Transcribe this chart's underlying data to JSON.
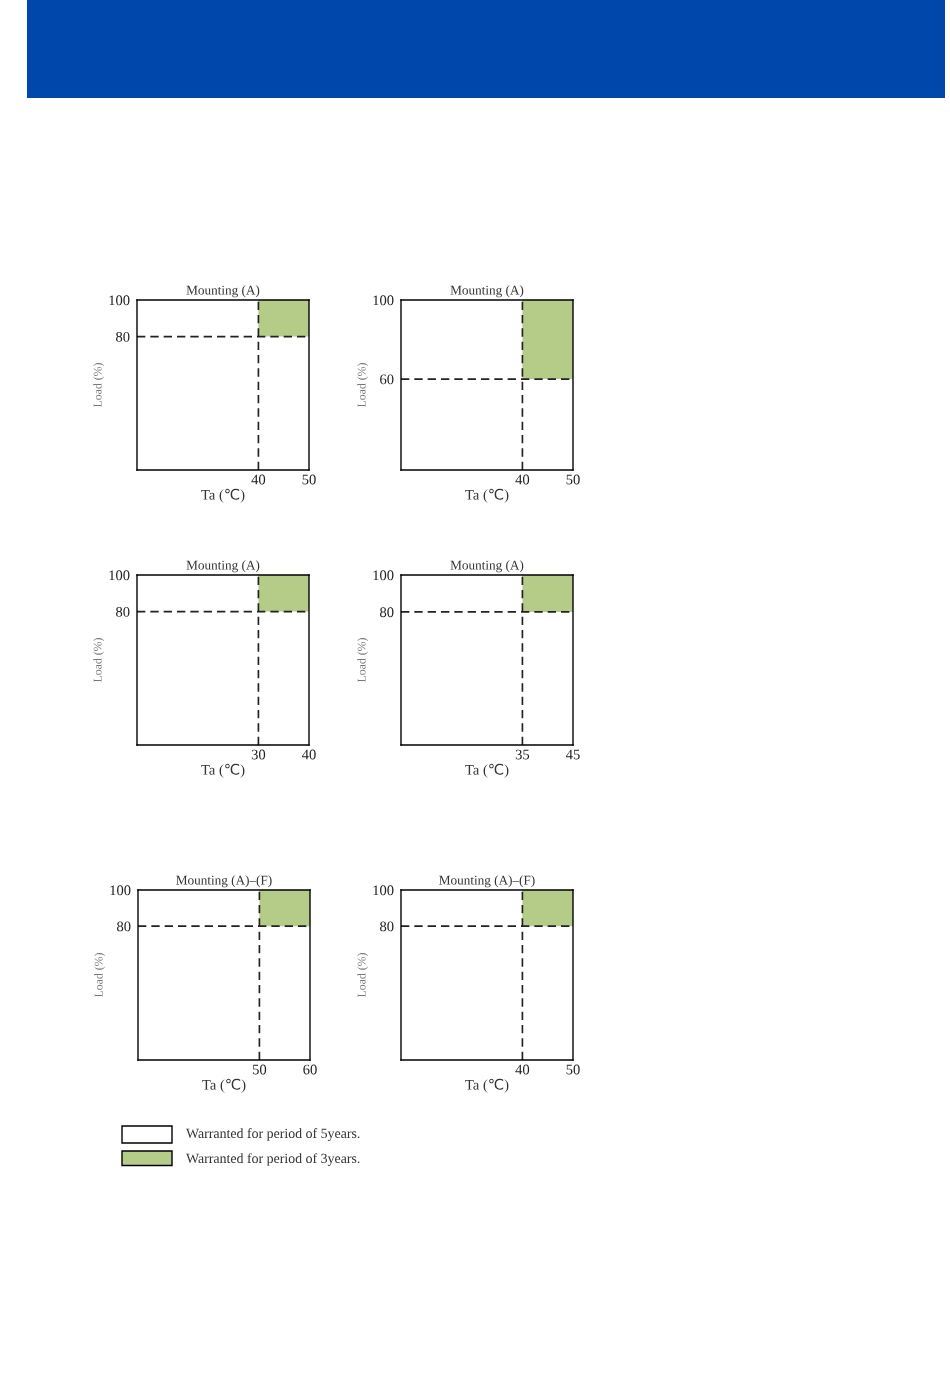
{
  "chart_data": [
    {
      "type": "line",
      "title": "Mounting (A)",
      "xlabel": "Ta (℃)",
      "ylabel": "Load (%)",
      "xlim": [
        16,
        50
      ],
      "xticks": [
        40,
        50
      ],
      "ylim": [
        7,
        100
      ],
      "yticks": [
        80,
        100
      ],
      "series": [
        {
          "color": "#b5cc89",
          "x": [
            40,
            50
          ],
          "values": [
            null,
            null
          ],
          "lower": [
            80,
            80
          ],
          "upper": [
            100,
            100
          ]
        }
      ],
      "ref_lines": [
        {
          "axis": "x",
          "value": 40,
          "color": "#222222",
          "line_style": "dashed"
        },
        {
          "axis": "y",
          "value": 80,
          "color": "#222222",
          "line_style": "dashed"
        }
      ]
    },
    {
      "type": "line",
      "title": "Mounting (A)",
      "xlabel": "Ta (℃)",
      "ylabel": "Load (%)",
      "xlim": [
        16,
        50
      ],
      "xticks": [
        40,
        50
      ],
      "ylim": [
        14,
        100
      ],
      "yticks": [
        60,
        100
      ],
      "series": [
        {
          "color": "#b5cc89",
          "x": [
            40,
            50
          ],
          "values": [
            null,
            null
          ],
          "lower": [
            60,
            60
          ],
          "upper": [
            100,
            100
          ]
        }
      ],
      "ref_lines": [
        {
          "axis": "x",
          "value": 40,
          "color": "#222222",
          "line_style": "dashed"
        },
        {
          "axis": "y",
          "value": 60,
          "color": "#222222",
          "line_style": "dashed"
        }
      ]
    },
    {
      "type": "line",
      "title": "Mounting (A)",
      "xlabel": "Ta (℃)",
      "ylabel": "Load (%)",
      "xlim": [
        6,
        40
      ],
      "xticks": [
        30,
        40
      ],
      "ylim": [
        7,
        100
      ],
      "yticks": [
        80,
        100
      ],
      "series": [
        {
          "color": "#b5cc89",
          "x": [
            30,
            40
          ],
          "values": [
            null,
            null
          ],
          "lower": [
            80,
            80
          ],
          "upper": [
            100,
            100
          ]
        }
      ],
      "ref_lines": [
        {
          "axis": "x",
          "value": 30,
          "color": "#222222",
          "line_style": "dashed"
        },
        {
          "axis": "y",
          "value": 80,
          "color": "#222222",
          "line_style": "dashed"
        }
      ]
    },
    {
      "type": "line",
      "title": "Mounting (A)",
      "xlabel": "Ta (℃)",
      "ylabel": "Load (%)",
      "xlim": [
        11,
        45
      ],
      "xticks": [
        35,
        45
      ],
      "ylim": [
        8,
        100
      ],
      "yticks": [
        80,
        100
      ],
      "series": [
        {
          "color": "#b5cc89",
          "x": [
            35,
            45
          ],
          "values": [
            null,
            null
          ],
          "lower": [
            80,
            80
          ],
          "upper": [
            100,
            100
          ]
        }
      ],
      "ref_lines": [
        {
          "axis": "x",
          "value": 35,
          "color": "#222222",
          "line_style": "dashed"
        },
        {
          "axis": "y",
          "value": 80,
          "color": "#222222",
          "line_style": "dashed"
        }
      ]
    },
    {
      "type": "line",
      "title": "Mounting (A)–(F)",
      "xlabel": "Ta (℃)",
      "ylabel": "Load (%)",
      "xlim": [
        26,
        60
      ],
      "xticks": [
        50,
        60
      ],
      "ylim": [
        6,
        100
      ],
      "yticks": [
        80,
        100
      ],
      "legend": "bottom",
      "annotations": [
        "Warranted for period of 5years."
      ],
      "series": [
        {
          "name": "Warranted for period of 3years.",
          "color": "#b5cc89",
          "x": [
            50,
            60
          ],
          "values": [
            null,
            null
          ],
          "lower": [
            80,
            80
          ],
          "upper": [
            100,
            100
          ]
        }
      ],
      "ref_lines": [
        {
          "axis": "x",
          "value": 50,
          "color": "#222222",
          "line_style": "dashed"
        },
        {
          "axis": "y",
          "value": 80,
          "color": "#222222",
          "line_style": "dashed"
        }
      ]
    },
    {
      "type": "line",
      "title": "Mounting (A)–(F)",
      "xlabel": "Ta (℃)",
      "ylabel": "Load (%)",
      "xlim": [
        16,
        50
      ],
      "xticks": [
        40,
        50
      ],
      "ylim": [
        6,
        100
      ],
      "yticks": [
        80,
        100
      ],
      "series": [
        {
          "color": "#b5cc89",
          "x": [
            40,
            50
          ],
          "values": [
            null,
            null
          ],
          "lower": [
            80,
            80
          ],
          "upper": [
            100,
            100
          ]
        }
      ],
      "ref_lines": [
        {
          "axis": "x",
          "value": 40,
          "color": "#222222",
          "line_style": "dashed"
        },
        {
          "axis": "y",
          "value": 80,
          "color": "#222222",
          "line_style": "dashed"
        }
      ]
    }
  ]
}
